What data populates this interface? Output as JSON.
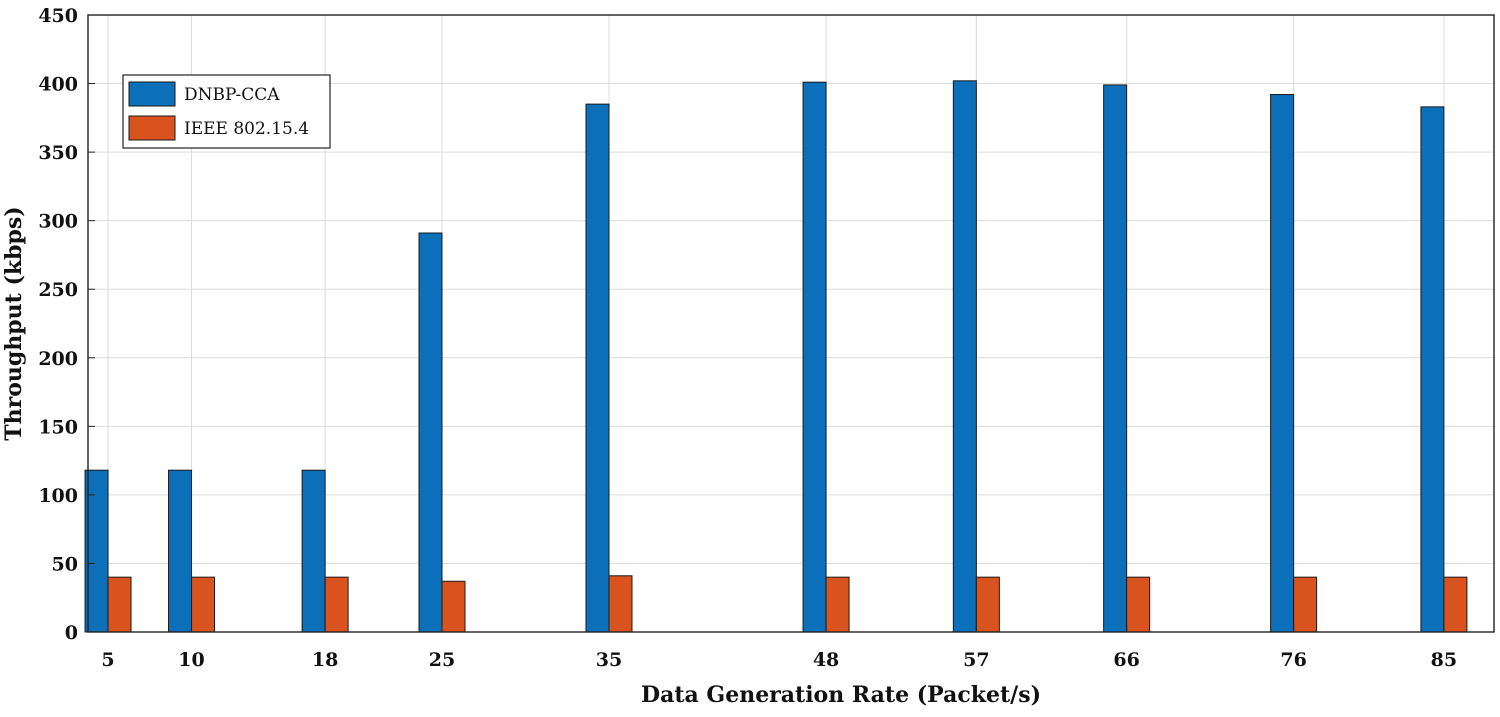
{
  "chart_data": {
    "type": "bar",
    "title": "",
    "xlabel": "Data Generation Rate (Packet/s)",
    "ylabel": "Throughput (kbps)",
    "x": [
      5,
      10,
      18,
      25,
      35,
      48,
      57,
      66,
      76,
      85
    ],
    "x_tick_labels": [
      "5",
      "10",
      "18",
      "25",
      "35",
      "48",
      "57",
      "66",
      "76",
      "85"
    ],
    "xlim": [
      3.8,
      88
    ],
    "ylim": [
      0,
      450
    ],
    "y_ticks": [
      0,
      50,
      100,
      150,
      200,
      250,
      300,
      350,
      400,
      450
    ],
    "y_tick_labels": [
      "0",
      "50",
      "100",
      "150",
      "200",
      "250",
      "300",
      "350",
      "400",
      "450"
    ],
    "grid": true,
    "legend_position": "top-left",
    "series": [
      {
        "name": "DNBP-CCA",
        "color": "#0b6fba",
        "values": [
          118,
          118,
          118,
          291,
          385,
          401,
          402,
          399,
          392,
          383
        ]
      },
      {
        "name": "IEEE 802.15.4",
        "color": "#d9531f",
        "values": [
          40,
          40,
          40,
          37,
          41,
          40,
          40,
          40,
          40,
          40
        ]
      }
    ]
  }
}
